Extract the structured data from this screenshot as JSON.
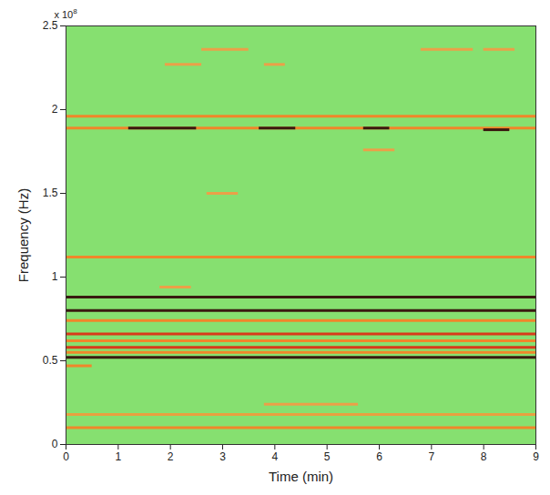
{
  "chart_data": {
    "type": "spectrogram",
    "x_label": "Time (min)",
    "y_label": "Frequency (Hz)",
    "annotations": [
      {
        "text": "x 10",
        "superscript": "8"
      }
    ],
    "xlim": [
      0,
      9
    ],
    "xticks": [
      0,
      1,
      2,
      3,
      4,
      5,
      6,
      7,
      8,
      9
    ],
    "ylim": [
      0,
      2.5
    ],
    "yticks": [
      0,
      0.5,
      1,
      1.5,
      2,
      2.5
    ],
    "segments": {
      "frequency": [
        0.1,
        0.18,
        0.24,
        0.47,
        0.52,
        0.55,
        0.58,
        0.62,
        0.66,
        0.74,
        0.8,
        0.88,
        0.94,
        1.12,
        1.5,
        1.76,
        1.89,
        1.89,
        1.89,
        1.89,
        1.88,
        1.96,
        2.27,
        2.27,
        2.36,
        2.36,
        2.36
      ],
      "start": [
        0,
        0,
        3.8,
        0,
        0,
        0,
        0,
        0,
        0,
        0,
        0,
        0,
        1.8,
        0,
        2.7,
        5.7,
        0,
        1.2,
        3.7,
        5.7,
        8.0,
        0,
        1.9,
        3.8,
        2.6,
        6.8,
        8.0
      ],
      "end": [
        9,
        9,
        5.6,
        0.5,
        9,
        9,
        9,
        9,
        9,
        9,
        9,
        9,
        2.4,
        9,
        3.3,
        6.3,
        9,
        2.5,
        4.4,
        6.2,
        8.5,
        9,
        2.6,
        4.2,
        3.5,
        7.8,
        8.6
      ]
    },
    "colors": [
      "#f0862a",
      "#e8a040",
      "#eba048",
      "#f0862a",
      "#3a1a10",
      "#f0862a",
      "#d83a1a",
      "#f0862a",
      "#d83a1a",
      "#f0862a",
      "#3a1a10",
      "#3a1a10",
      "#eba048",
      "#f0862a",
      "#eba048",
      "#eba048",
      "#f0862a",
      "#3a1a10",
      "#3a1a10",
      "#3a1a10",
      "#3a1a10",
      "#f0862a",
      "#eba048",
      "#eba048",
      "#eba048",
      "#eba048",
      "#eba048"
    ]
  }
}
